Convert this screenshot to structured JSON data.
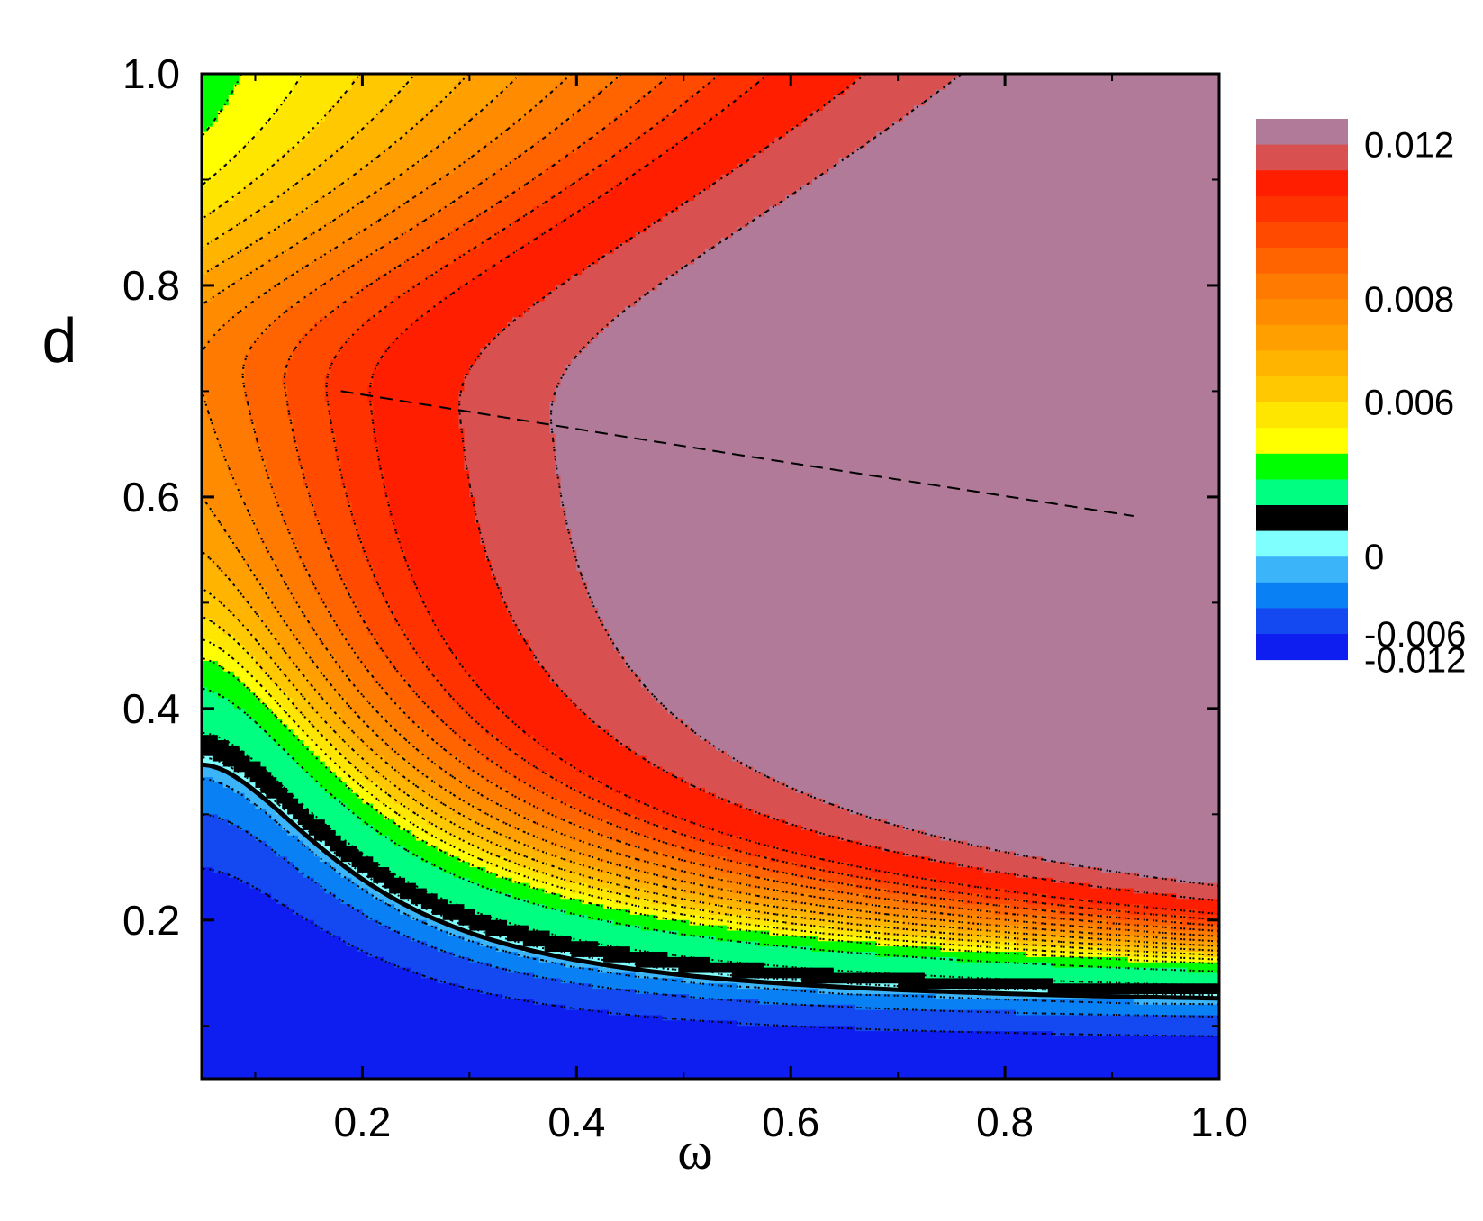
{
  "chart_data": {
    "type": "heatmap",
    "subtype": "filled-contour",
    "title": "",
    "xlabel": "ω",
    "ylabel": "d",
    "xlim": [
      0.05,
      1.0
    ],
    "ylim": [
      0.05,
      1.0
    ],
    "x_ticks": [
      0.2,
      0.4,
      0.6,
      0.8,
      1.0
    ],
    "x_tick_labels": [
      "0.2",
      "0.4",
      "0.6",
      "0.8",
      "1.0"
    ],
    "y_ticks": [
      0.2,
      0.4,
      0.6,
      0.8,
      1.0
    ],
    "y_tick_labels": [
      "0.2",
      "0.4",
      "0.6",
      "0.8",
      "1.0"
    ],
    "grid": false,
    "colorbar": {
      "placement": "right",
      "levels": [
        -0.012,
        -0.006,
        -0.004,
        -0.002,
        0,
        0.0005,
        0.002,
        0.004,
        0.005,
        0.0055,
        0.006,
        0.0065,
        0.007,
        0.0075,
        0.008,
        0.0085,
        0.009,
        0.0095,
        0.01,
        0.011,
        0.012,
        0.013
      ],
      "colors": [
        "#0f1ef0",
        "#1448f0",
        "#0a80f5",
        "#3cb4fa",
        "#80ffff",
        "#000000",
        "#00ff80",
        "#00ff00",
        "#ffff00",
        "#ffe600",
        "#ffc800",
        "#ffb400",
        "#ffa000",
        "#ff8c00",
        "#ff7a00",
        "#ff6400",
        "#ff4a00",
        "#ff3200",
        "#ff1e00",
        "#d85050",
        "#b07a98"
      ],
      "tick_values": [
        0.012,
        0.008,
        0.006,
        0,
        -0.006,
        -0.012
      ],
      "tick_labels": [
        "0.012",
        "0.008",
        "0.006",
        "0",
        "-0.006",
        "-0.012"
      ]
    },
    "features": {
      "zero_contour": [
        [
          0.05,
          0.365
        ],
        [
          0.1,
          0.33
        ],
        [
          0.2,
          0.24
        ],
        [
          0.3,
          0.185
        ],
        [
          0.4,
          0.163
        ],
        [
          0.6,
          0.14
        ],
        [
          0.8,
          0.127
        ],
        [
          1.0,
          0.117
        ]
      ],
      "ridge_dashed_line": [
        [
          0.18,
          0.7
        ],
        [
          0.55,
          0.64
        ],
        [
          0.92,
          0.582
        ]
      ]
    }
  }
}
